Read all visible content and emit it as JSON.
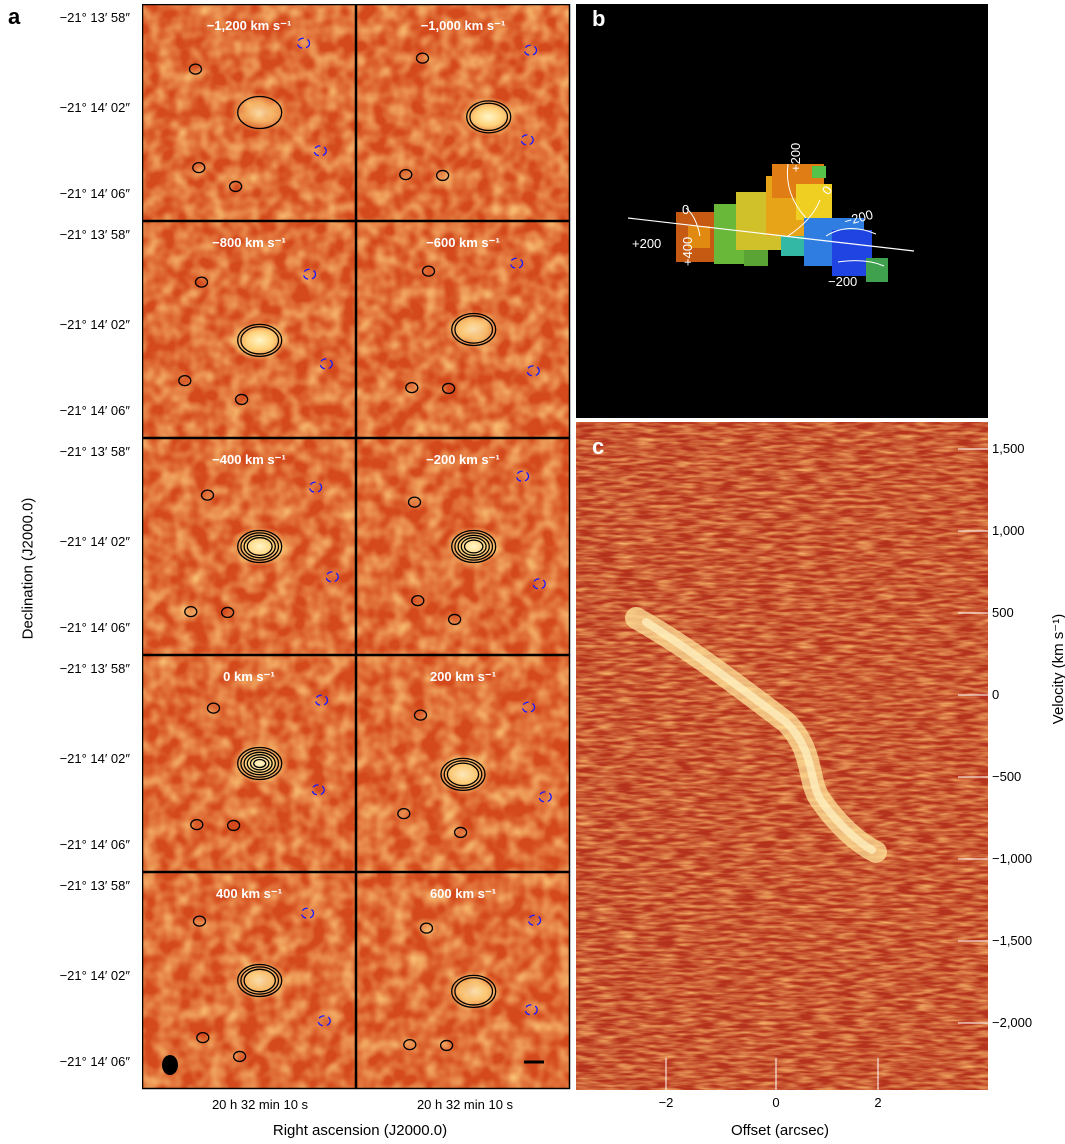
{
  "panel_labels": {
    "a": "a",
    "b": "b",
    "c": "c"
  },
  "panel_a": {
    "y_axis_title": "Declination (J2000.0)",
    "x_axis_title": "Right ascension (J2000.0)",
    "x_tick_left": "20 h 32 min 10 s",
    "x_tick_right": "20 h 32 min 10 s",
    "dec_ticks": [
      "−21° 13′ 58″",
      "−21° 14′ 02″",
      "−21° 14′ 06″"
    ],
    "channels": [
      "−1,200 km s⁻¹",
      "−1,000 km s⁻¹",
      "−800 km s⁻¹",
      "−600 km s⁻¹",
      "−400 km s⁻¹",
      "−200 km s⁻¹",
      "0 km s⁻¹",
      "200 km s⁻¹",
      "400 km s⁻¹",
      "600 km s⁻¹"
    ],
    "colors": {
      "contour_positive": "#000000",
      "contour_negative": "#1a1aff",
      "background": "#d44a1c"
    }
  },
  "panel_b": {
    "contour_labels": [
      "+200",
      "0",
      "−200",
      "+200",
      "+400",
      "0",
      "−200"
    ],
    "background": "#000000"
  },
  "panel_c": {
    "x_axis_title": "Offset (arcsec)",
    "y_axis_title": "Velocity (km s⁻¹)",
    "x_ticks": [
      "−2",
      "0",
      "2"
    ],
    "y_ticks": [
      "1,500",
      "1,000",
      "500",
      "0",
      "−500",
      "−1,000",
      "−1,500",
      "−2,000"
    ]
  }
}
